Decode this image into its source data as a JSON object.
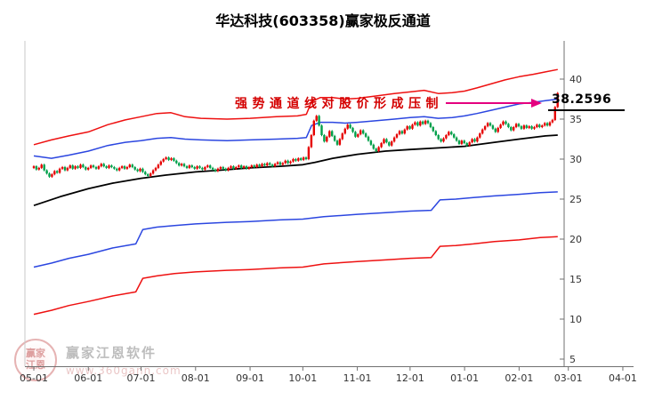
{
  "title": "华达科技(603358)赢家极反通道",
  "annotation": {
    "text": "强势通道线对股价形成压制",
    "text_color": "#d40000",
    "arrow_color": "#e4007f"
  },
  "price_label": "38.2596",
  "watermark": {
    "logo_top": "赢家",
    "logo_bottom": "江恩",
    "brand": "赢家江恩软件",
    "url": "www.360gann.com"
  },
  "chart_data": {
    "type": "candlestick",
    "title": "华达科技(603358)赢家极反通道",
    "xlabel": "",
    "ylabel": "",
    "ylim": [
      5,
      42
    ],
    "grid": false,
    "legend": "none",
    "y_ticks": [
      40,
      35,
      30,
      25,
      20,
      15,
      10,
      5
    ],
    "x_axis": {
      "labels": [
        "05-01",
        "06-01",
        "07-01",
        "08-01",
        "09-01",
        "10-01",
        "11-01",
        "12-01",
        "01-01",
        "02-01",
        "03-01",
        "04-01"
      ],
      "days": [
        0,
        31,
        61,
        92,
        123,
        153,
        184,
        214,
        245,
        276,
        304,
        335
      ]
    },
    "colors": {
      "up": "#e60000",
      "down": "#00a04a"
    },
    "channels": [
      {
        "name": "upper-extreme-red-line",
        "color": "#ee1111",
        "width": 1.5,
        "points": [
          [
            0,
            31.8
          ],
          [
            10,
            32.4
          ],
          [
            20,
            32.9
          ],
          [
            31,
            33.4
          ],
          [
            42,
            34.3
          ],
          [
            52,
            34.9
          ],
          [
            61,
            35.3
          ],
          [
            70,
            35.7
          ],
          [
            78,
            35.8
          ],
          [
            86,
            35.3
          ],
          [
            95,
            35.1
          ],
          [
            110,
            35.0
          ],
          [
            123,
            35.1
          ],
          [
            138,
            35.3
          ],
          [
            150,
            35.4
          ],
          [
            155,
            35.6
          ],
          [
            158,
            37.2
          ],
          [
            163,
            37.7
          ],
          [
            170,
            37.7
          ],
          [
            177,
            37.5
          ],
          [
            184,
            37.6
          ],
          [
            195,
            37.9
          ],
          [
            205,
            38.2
          ],
          [
            214,
            38.4
          ],
          [
            222,
            38.6
          ],
          [
            230,
            38.2
          ],
          [
            238,
            38.3
          ],
          [
            245,
            38.5
          ],
          [
            252,
            38.9
          ],
          [
            260,
            39.4
          ],
          [
            268,
            39.9
          ],
          [
            276,
            40.3
          ],
          [
            284,
            40.6
          ],
          [
            291,
            40.9
          ],
          [
            298,
            41.2
          ]
        ]
      },
      {
        "name": "upper-blue-channel-line",
        "color": "#2b46e0",
        "width": 1.5,
        "points": [
          [
            0,
            30.4
          ],
          [
            10,
            30.1
          ],
          [
            20,
            30.5
          ],
          [
            31,
            31.0
          ],
          [
            42,
            31.7
          ],
          [
            52,
            32.1
          ],
          [
            61,
            32.3
          ],
          [
            70,
            32.6
          ],
          [
            78,
            32.7
          ],
          [
            86,
            32.5
          ],
          [
            95,
            32.4
          ],
          [
            110,
            32.3
          ],
          [
            123,
            32.4
          ],
          [
            138,
            32.5
          ],
          [
            150,
            32.6
          ],
          [
            155,
            32.7
          ],
          [
            158,
            34.2
          ],
          [
            163,
            34.6
          ],
          [
            170,
            34.6
          ],
          [
            177,
            34.5
          ],
          [
            184,
            34.6
          ],
          [
            195,
            34.8
          ],
          [
            205,
            35.0
          ],
          [
            214,
            35.2
          ],
          [
            222,
            35.3
          ],
          [
            230,
            35.1
          ],
          [
            238,
            35.2
          ],
          [
            245,
            35.4
          ],
          [
            252,
            35.7
          ],
          [
            260,
            36.1
          ],
          [
            268,
            36.5
          ],
          [
            276,
            36.9
          ],
          [
            284,
            37.1
          ],
          [
            291,
            37.3
          ],
          [
            298,
            37.5
          ]
        ]
      },
      {
        "name": "middle-black-line",
        "color": "#000000",
        "width": 1.8,
        "points": [
          [
            0,
            24.2
          ],
          [
            15,
            25.3
          ],
          [
            31,
            26.3
          ],
          [
            45,
            27.0
          ],
          [
            61,
            27.6
          ],
          [
            75,
            28.0
          ],
          [
            92,
            28.4
          ],
          [
            105,
            28.6
          ],
          [
            123,
            28.9
          ],
          [
            140,
            29.1
          ],
          [
            153,
            29.3
          ],
          [
            160,
            29.6
          ],
          [
            170,
            30.1
          ],
          [
            184,
            30.6
          ],
          [
            200,
            31.0
          ],
          [
            214,
            31.2
          ],
          [
            230,
            31.4
          ],
          [
            245,
            31.6
          ],
          [
            262,
            32.1
          ],
          [
            276,
            32.5
          ],
          [
            291,
            32.9
          ],
          [
            298,
            33.0
          ]
        ]
      },
      {
        "name": "lower-blue-channel-line",
        "color": "#2b46e0",
        "width": 1.5,
        "points": [
          [
            0,
            16.5
          ],
          [
            10,
            17.0
          ],
          [
            20,
            17.6
          ],
          [
            31,
            18.1
          ],
          [
            45,
            18.9
          ],
          [
            58,
            19.4
          ],
          [
            62,
            21.2
          ],
          [
            70,
            21.5
          ],
          [
            80,
            21.7
          ],
          [
            92,
            21.9
          ],
          [
            110,
            22.1
          ],
          [
            123,
            22.2
          ],
          [
            140,
            22.4
          ],
          [
            153,
            22.5
          ],
          [
            165,
            22.8
          ],
          [
            184,
            23.1
          ],
          [
            200,
            23.3
          ],
          [
            214,
            23.5
          ],
          [
            226,
            23.6
          ],
          [
            231,
            24.9
          ],
          [
            240,
            25.0
          ],
          [
            250,
            25.2
          ],
          [
            262,
            25.4
          ],
          [
            276,
            25.6
          ],
          [
            288,
            25.8
          ],
          [
            298,
            25.9
          ]
        ]
      },
      {
        "name": "lower-extreme-red-line",
        "color": "#ee1111",
        "width": 1.5,
        "points": [
          [
            0,
            10.6
          ],
          [
            10,
            11.1
          ],
          [
            20,
            11.7
          ],
          [
            31,
            12.2
          ],
          [
            45,
            12.9
          ],
          [
            58,
            13.4
          ],
          [
            62,
            15.1
          ],
          [
            70,
            15.4
          ],
          [
            80,
            15.7
          ],
          [
            92,
            15.9
          ],
          [
            110,
            16.1
          ],
          [
            123,
            16.2
          ],
          [
            140,
            16.4
          ],
          [
            153,
            16.5
          ],
          [
            165,
            16.9
          ],
          [
            184,
            17.2
          ],
          [
            200,
            17.4
          ],
          [
            214,
            17.6
          ],
          [
            226,
            17.7
          ],
          [
            231,
            19.1
          ],
          [
            240,
            19.2
          ],
          [
            250,
            19.4
          ],
          [
            262,
            19.7
          ],
          [
            276,
            19.9
          ],
          [
            288,
            20.2
          ],
          [
            298,
            20.3
          ]
        ]
      }
    ],
    "candles": {
      "day_start": 0,
      "day_step": 1.475,
      "closes": [
        29.1,
        28.7,
        28.9,
        29.3,
        28.6,
        28.2,
        27.8,
        28.1,
        28.5,
        28.3,
        28.8,
        29.0,
        28.6,
        28.9,
        29.2,
        28.8,
        29.1,
        28.9,
        29.3,
        29.0,
        28.7,
        28.9,
        29.2,
        29.0,
        28.8,
        29.1,
        29.4,
        29.1,
        28.9,
        29.2,
        29.0,
        28.8,
        28.6,
        28.9,
        29.1,
        28.8,
        29.0,
        29.3,
        29.0,
        28.7,
        28.5,
        28.8,
        28.4,
        28.1,
        27.9,
        28.2,
        28.6,
        28.9,
        29.3,
        29.7,
        30.0,
        30.2,
        29.9,
        30.1,
        29.8,
        29.5,
        29.2,
        29.4,
        29.1,
        28.9,
        29.2,
        29.0,
        28.8,
        29.1,
        28.9,
        28.7,
        29.0,
        29.2,
        28.9,
        28.7,
        28.5,
        28.8,
        29.0,
        28.8,
        28.6,
        28.9,
        29.1,
        28.8,
        29.0,
        29.2,
        28.9,
        29.1,
        28.8,
        29.0,
        29.2,
        29.0,
        29.3,
        29.1,
        29.4,
        29.2,
        29.5,
        29.3,
        29.1,
        29.4,
        29.6,
        29.3,
        29.5,
        29.8,
        29.5,
        29.7,
        30.0,
        29.8,
        30.1,
        29.9,
        30.2,
        30.0,
        31.5,
        33.0,
        34.8,
        35.4,
        34.2,
        33.0,
        32.2,
        32.8,
        33.5,
        32.9,
        32.3,
        31.8,
        32.5,
        33.2,
        33.8,
        34.3,
        33.9,
        33.4,
        32.8,
        33.1,
        33.6,
        33.2,
        32.8,
        32.3,
        31.8,
        31.3,
        31.0,
        31.5,
        32.0,
        32.5,
        32.1,
        31.7,
        32.2,
        32.7,
        33.1,
        33.5,
        33.2,
        33.7,
        34.1,
        33.8,
        34.3,
        34.6,
        34.2,
        34.7,
        34.4,
        34.8,
        34.5,
        34.0,
        33.5,
        33.0,
        32.5,
        32.2,
        32.6,
        33.0,
        33.4,
        33.1,
        32.7,
        32.3,
        31.9,
        32.3,
        32.0,
        31.7,
        32.1,
        32.5,
        32.2,
        32.7,
        33.2,
        33.7,
        34.1,
        34.5,
        34.2,
        33.8,
        33.4,
        33.9,
        34.3,
        34.7,
        34.4,
        34.0,
        33.6,
        34.0,
        34.4,
        34.1,
        33.8,
        34.2,
        33.9,
        34.1,
        33.8,
        34.0,
        34.3,
        34.0,
        34.2,
        34.5,
        34.2,
        34.6,
        34.9,
        36.5,
        38.26
      ]
    }
  }
}
